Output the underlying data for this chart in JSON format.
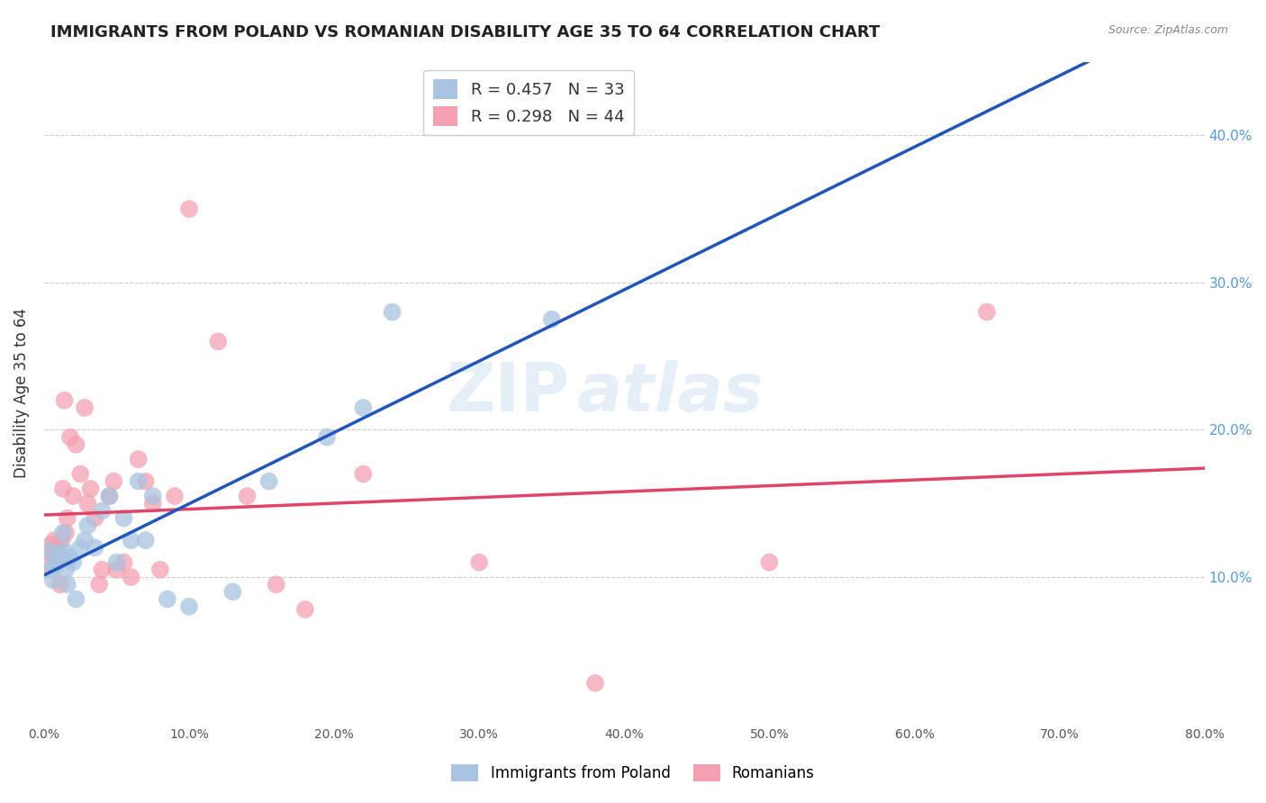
{
  "title": "IMMIGRANTS FROM POLAND VS ROMANIAN DISABILITY AGE 35 TO 64 CORRELATION CHART",
  "source": "Source: ZipAtlas.com",
  "ylabel": "Disability Age 35 to 64",
  "right_yticks": [
    "10.0%",
    "20.0%",
    "30.0%",
    "40.0%"
  ],
  "right_ytick_vals": [
    0.1,
    0.2,
    0.3,
    0.4
  ],
  "xlim": [
    0.0,
    0.8
  ],
  "ylim": [
    0.0,
    0.45
  ],
  "legend_poland_R": "R = 0.457",
  "legend_poland_N": "N = 33",
  "legend_romanian_R": "R = 0.298",
  "legend_romanian_N": "N = 44",
  "poland_color": "#a8c4e0",
  "romanian_color": "#f4a0b0",
  "poland_line_color": "#2255bb",
  "romanian_line_color": "#e04468",
  "poland_x": [
    0.003,
    0.005,
    0.006,
    0.008,
    0.01,
    0.012,
    0.013,
    0.014,
    0.015,
    0.016,
    0.018,
    0.02,
    0.022,
    0.025,
    0.028,
    0.03,
    0.035,
    0.04,
    0.045,
    0.05,
    0.055,
    0.06,
    0.065,
    0.07,
    0.075,
    0.085,
    0.1,
    0.13,
    0.155,
    0.195,
    0.22,
    0.24,
    0.35
  ],
  "poland_y": [
    0.118,
    0.105,
    0.098,
    0.108,
    0.115,
    0.112,
    0.13,
    0.118,
    0.105,
    0.095,
    0.113,
    0.11,
    0.085,
    0.12,
    0.125,
    0.135,
    0.12,
    0.145,
    0.155,
    0.11,
    0.14,
    0.125,
    0.165,
    0.125,
    0.155,
    0.085,
    0.08,
    0.09,
    0.165,
    0.195,
    0.215,
    0.28,
    0.275
  ],
  "romanian_x": [
    0.003,
    0.004,
    0.005,
    0.006,
    0.007,
    0.008,
    0.009,
    0.01,
    0.011,
    0.012,
    0.013,
    0.014,
    0.015,
    0.016,
    0.018,
    0.02,
    0.022,
    0.025,
    0.028,
    0.03,
    0.032,
    0.035,
    0.038,
    0.04,
    0.045,
    0.048,
    0.05,
    0.055,
    0.06,
    0.065,
    0.07,
    0.075,
    0.08,
    0.09,
    0.1,
    0.12,
    0.14,
    0.16,
    0.18,
    0.22,
    0.3,
    0.38,
    0.5,
    0.65
  ],
  "romanian_y": [
    0.118,
    0.108,
    0.122,
    0.115,
    0.125,
    0.12,
    0.11,
    0.118,
    0.095,
    0.125,
    0.16,
    0.22,
    0.13,
    0.14,
    0.195,
    0.155,
    0.19,
    0.17,
    0.215,
    0.15,
    0.16,
    0.14,
    0.095,
    0.105,
    0.155,
    0.165,
    0.105,
    0.11,
    0.1,
    0.18,
    0.165,
    0.15,
    0.105,
    0.155,
    0.35,
    0.26,
    0.155,
    0.095,
    0.078,
    0.17,
    0.11,
    0.028,
    0.11,
    0.28
  ]
}
